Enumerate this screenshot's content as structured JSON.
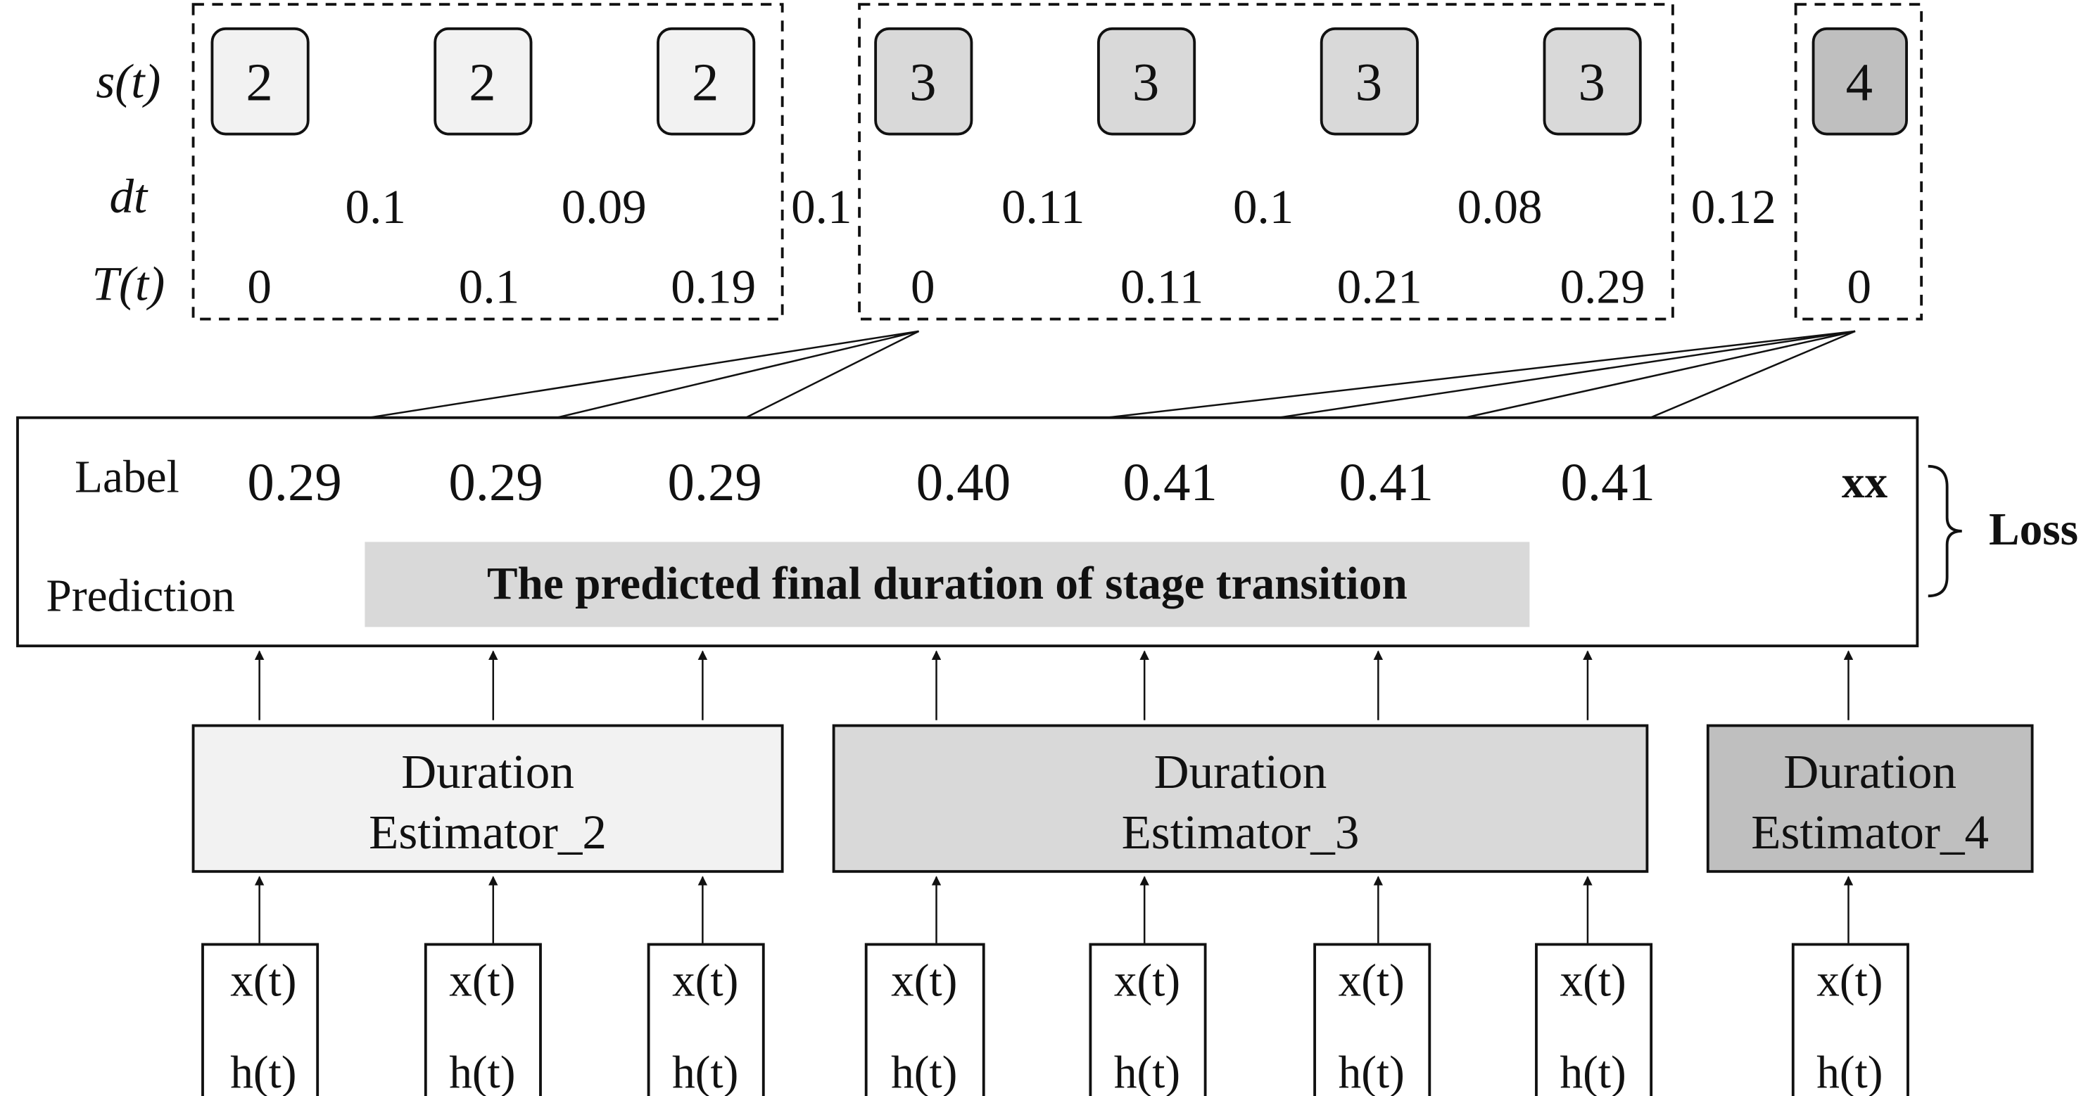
{
  "colors": {
    "stage2": "#f2f2f2",
    "stage3": "#d9d9d9",
    "stage4": "#bfbfbf",
    "prediction_bar": "#d9d9d9",
    "stroke": "#111111"
  },
  "row_labels": {
    "s": "s(t)",
    "dt": "dt",
    "T": "T(t)"
  },
  "stage_groups": [
    {
      "stage": "2",
      "s_values": [
        "2",
        "2",
        "2"
      ],
      "dt_values": [
        "0.1",
        "0.09"
      ],
      "T_values": [
        "0",
        "0.1",
        "0.19"
      ],
      "estimator": [
        "Duration",
        "Estimator_2"
      ]
    },
    {
      "stage": "3",
      "s_values": [
        "3",
        "3",
        "3",
        "3"
      ],
      "dt_values": [
        "0.11",
        "0.1",
        "0.08"
      ],
      "T_values": [
        "0",
        "0.11",
        "0.21",
        "0.29"
      ],
      "estimator": [
        "Duration",
        "Estimator_3"
      ]
    },
    {
      "stage": "4",
      "s_values": [
        "4"
      ],
      "dt_values": [],
      "T_values": [
        "0"
      ],
      "estimator": [
        "Duration",
        "Estimator_4"
      ]
    }
  ],
  "between_dt": [
    "0.1",
    "0.12"
  ],
  "label_row": {
    "title": "Label",
    "values": [
      "0.29",
      "0.29",
      "0.29",
      "0.40",
      "0.41",
      "0.41",
      "0.41",
      "xx"
    ]
  },
  "prediction_row": {
    "title": "Prediction",
    "bar_text": "The predicted final duration of stage transition"
  },
  "loss_label": "Loss",
  "input": {
    "x": "x(t)",
    "h": "h(t)"
  }
}
